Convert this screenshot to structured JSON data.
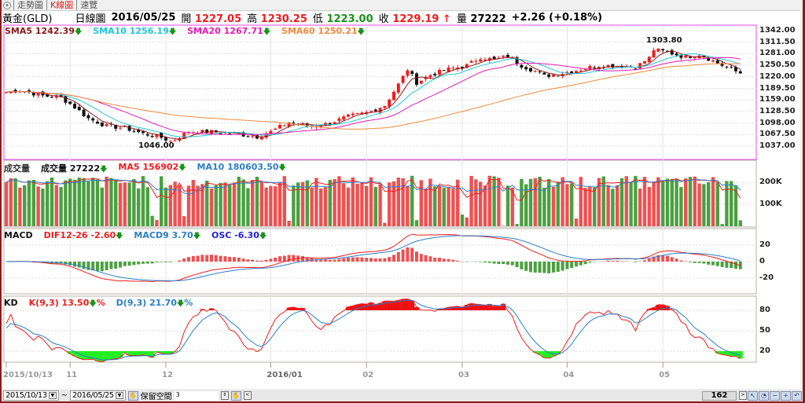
{
  "tabs": [
    {
      "label": "走勢圖"
    },
    {
      "label": "K線圖"
    },
    {
      "label": "速覽"
    }
  ],
  "header": {
    "symbol": "黃金(GLD)",
    "chart_type": "日線圖",
    "date": "2016/05/25",
    "open_label": "開",
    "open": "1227.05",
    "high_label": "高",
    "high": "1230.25",
    "low_label": "低",
    "low": "1223.00",
    "close_label": "收",
    "close": "1229.19",
    "close_arrow": "↑",
    "vol_label": "量",
    "volume": "27222",
    "change": "+2.26 (+0.18%)"
  },
  "legends": {
    "price": [
      {
        "text": "SMA5 1242.39",
        "color": "#8b1a1a"
      },
      {
        "text": "SMA10 1256.19",
        "color": "#22c6d6"
      },
      {
        "text": "SMA20 1267.71",
        "color": "#e81bb0"
      },
      {
        "text": "SMA60 1250.21",
        "color": "#f08a3c"
      }
    ],
    "volume": [
      {
        "text": "成交量",
        "color": "#333"
      },
      {
        "text": "成交量 27222",
        "color": "#111"
      },
      {
        "text": "MA5 156902",
        "color": "#f21b1b"
      },
      {
        "text": "MA10 180603.50",
        "color": "#2a7fc8"
      }
    ],
    "macd": [
      {
        "text": "MACD",
        "color": "#111"
      },
      {
        "text": "DIF12-26 -2.60",
        "color": "#f21b1b"
      },
      {
        "text": "MACD9 3.70",
        "color": "#2a7fc8"
      },
      {
        "text": "OSC -6.30",
        "color": "#2020e0"
      }
    ],
    "kd": [
      {
        "text": "KD",
        "color": "#111"
      },
      {
        "text": "K(9,3) 13.50",
        "color": "#f21b1b",
        "suffix": "%"
      },
      {
        "text": "D(9,3) 21.70",
        "color": "#2a7fc8",
        "suffix": "%"
      }
    ]
  },
  "down_arrow": "🡇",
  "axes": {
    "price_ticks": [
      "1342.00",
      "1311.50",
      "1281.00",
      "1250.50",
      "1220.00",
      "1189.50",
      "1159.00",
      "1128.50",
      "1098.00",
      "1067.50",
      "1037.00"
    ],
    "volume_ticks": [
      "200K",
      "100K"
    ],
    "macd_ticks": [
      "20",
      "0",
      "-20"
    ],
    "kd_ticks": [
      "80",
      "50",
      "20"
    ],
    "x_ticks": [
      "2015/10/13",
      "11",
      "12",
      "2016/01",
      "02",
      "03",
      "04",
      "05"
    ]
  },
  "annotations": {
    "high": "1303.80",
    "low": "1046.00"
  },
  "bottom": {
    "start_date": "2015/10/13",
    "tilde": "~",
    "end_date": "2016/05/25",
    "reserve_label": "保留空間",
    "reserve_value": "3",
    "bar_count": "162"
  },
  "colors": {
    "up": "#f21b1b",
    "down": "#111111",
    "vol_up": "#f05050",
    "vol_down": "#4aa040",
    "panel_border": "#ee44ee"
  },
  "chart_data": {
    "type": "candlestick",
    "bars": 162,
    "close_keypoints": [
      [
        0,
        1180
      ],
      [
        3,
        1185
      ],
      [
        8,
        1170
      ],
      [
        12,
        1165
      ],
      [
        15,
        1140
      ],
      [
        18,
        1110
      ],
      [
        22,
        1090
      ],
      [
        26,
        1085
      ],
      [
        30,
        1070
      ],
      [
        34,
        1060
      ],
      [
        36,
        1050
      ],
      [
        40,
        1075
      ],
      [
        45,
        1075
      ],
      [
        50,
        1070
      ],
      [
        55,
        1062
      ],
      [
        58,
        1075
      ],
      [
        62,
        1100
      ],
      [
        66,
        1090
      ],
      [
        70,
        1095
      ],
      [
        75,
        1115
      ],
      [
        79,
        1125
      ],
      [
        83,
        1145
      ],
      [
        86,
        1200
      ],
      [
        88,
        1240
      ],
      [
        90,
        1205
      ],
      [
        93,
        1225
      ],
      [
        97,
        1240
      ],
      [
        101,
        1250
      ],
      [
        104,
        1272
      ],
      [
        107,
        1265
      ],
      [
        110,
        1275
      ],
      [
        113,
        1250
      ],
      [
        116,
        1235
      ],
      [
        118,
        1222
      ],
      [
        122,
        1230
      ],
      [
        126,
        1240
      ],
      [
        130,
        1250
      ],
      [
        134,
        1250
      ],
      [
        138,
        1245
      ],
      [
        141,
        1270
      ],
      [
        142,
        1292
      ],
      [
        145,
        1285
      ],
      [
        149,
        1272
      ],
      [
        152,
        1280
      ],
      [
        155,
        1262
      ],
      [
        158,
        1245
      ],
      [
        161,
        1229
      ]
    ],
    "price_range": [
      1037,
      1342
    ],
    "volume_range_k": [
      0,
      300
    ],
    "macd_range": [
      -30,
      30
    ],
    "kd_range": [
      0,
      100
    ]
  }
}
